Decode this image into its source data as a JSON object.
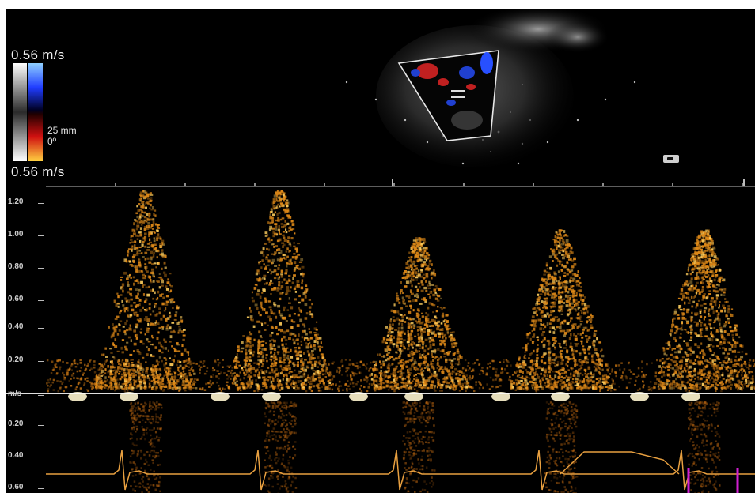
{
  "colors": {
    "background": "#000000",
    "doppler_signal": "#f0a020",
    "baseline": "#ffffff",
    "ecg_trace": "#e8a040",
    "color_flow_positive": "#3a6cff",
    "color_flow_negative": "#e02020",
    "marker": "#d020d0"
  },
  "scale": {
    "top_velocity": "0.56 m/s",
    "bottom_velocity": "0.56 m/s",
    "depth": "25 mm",
    "angle": "0º"
  },
  "spectral_axis": {
    "unit": "m/s",
    "ticks": [
      "1.20",
      "1.00",
      "0.80",
      "0.60",
      "0.40",
      "0.20",
      "m/s",
      "0.20",
      "0.40",
      "0.60"
    ]
  }
}
